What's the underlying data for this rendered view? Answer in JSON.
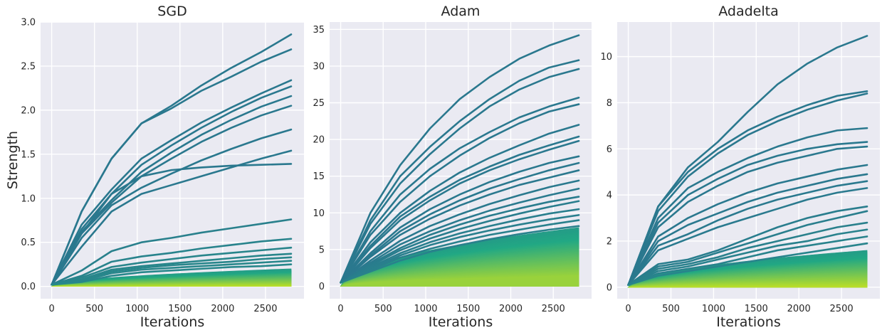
{
  "figure": {
    "ylabel": "Strength",
    "xlabel": "Iterations"
  },
  "style": {
    "background": "#eaeaf2",
    "grid": "#ffffff",
    "color_high": "#2a788e",
    "color_mid": "#22a884",
    "color_low": "#bddf26"
  },
  "chart_data": [
    {
      "type": "line",
      "title": "SGD",
      "xlabel": "Iterations",
      "ylabel": "Strength",
      "xlim": [
        -130,
        2950
      ],
      "ylim": [
        -0.14,
        3.0
      ],
      "xticks": [
        0,
        500,
        1000,
        1500,
        2000,
        2500
      ],
      "xtick_labels": [
        "0",
        "500",
        "1000",
        "1500",
        "2000",
        "2500"
      ],
      "yticks": [
        0.0,
        0.5,
        1.0,
        1.5,
        2.0,
        2.5,
        3.0
      ],
      "ytick_labels": [
        "0.0",
        "0.5",
        "1.0",
        "1.5",
        "2.0",
        "2.5",
        "3.0"
      ],
      "grid": true,
      "x_range": [
        0,
        2800
      ],
      "series": [
        {
          "values": [
            0.02,
            0.85,
            1.45,
            1.85,
            2.05,
            2.28,
            2.48,
            2.66,
            2.86
          ]
        },
        {
          "values": [
            0.02,
            0.85,
            1.45,
            1.85,
            2.02,
            2.22,
            2.38,
            2.55,
            2.69
          ]
        },
        {
          "values": [
            0.02,
            0.7,
            1.1,
            1.45,
            1.66,
            1.86,
            2.03,
            2.19,
            2.34
          ]
        },
        {
          "values": [
            0.02,
            0.65,
            1.05,
            1.38,
            1.6,
            1.8,
            1.98,
            2.14,
            2.27
          ]
        },
        {
          "values": [
            0.02,
            0.62,
            0.98,
            1.3,
            1.52,
            1.72,
            1.89,
            2.04,
            2.16
          ]
        },
        {
          "values": [
            0.02,
            0.6,
            0.95,
            1.25,
            1.45,
            1.64,
            1.8,
            1.94,
            2.05
          ]
        },
        {
          "values": [
            0.02,
            0.55,
            0.92,
            1.12,
            1.28,
            1.43,
            1.56,
            1.68,
            1.78
          ]
        },
        {
          "values": [
            0.02,
            0.6,
            1.05,
            1.25,
            1.32,
            1.35,
            1.37,
            1.38,
            1.39
          ]
        },
        {
          "values": [
            0.02,
            0.45,
            0.85,
            1.05,
            1.15,
            1.25,
            1.35,
            1.45,
            1.54
          ]
        },
        {
          "values": [
            0.02,
            0.18,
            0.4,
            0.5,
            0.55,
            0.61,
            0.66,
            0.71,
            0.76
          ]
        },
        {
          "values": [
            0.02,
            0.12,
            0.28,
            0.34,
            0.38,
            0.43,
            0.47,
            0.51,
            0.54
          ]
        },
        {
          "values": [
            0.02,
            0.1,
            0.22,
            0.27,
            0.31,
            0.35,
            0.38,
            0.41,
            0.44
          ]
        },
        {
          "values": [
            0.02,
            0.08,
            0.19,
            0.23,
            0.26,
            0.29,
            0.32,
            0.35,
            0.37
          ]
        },
        {
          "values": [
            0.02,
            0.07,
            0.17,
            0.21,
            0.24,
            0.26,
            0.28,
            0.31,
            0.33
          ]
        },
        {
          "values": [
            0.02,
            0.06,
            0.15,
            0.19,
            0.21,
            0.23,
            0.25,
            0.27,
            0.29
          ]
        },
        {
          "values": [
            0.02,
            0.05,
            0.12,
            0.16,
            0.18,
            0.2,
            0.22,
            0.23,
            0.25
          ]
        }
      ],
      "band": {
        "min_value": 0.0,
        "max_value": 0.2,
        "bottom": 0.0
      }
    },
    {
      "type": "line",
      "title": "Adam",
      "xlabel": "Iterations",
      "ylim": [
        -1.7,
        36
      ],
      "xlim": [
        -130,
        2950
      ],
      "xticks": [
        0,
        500,
        1000,
        1500,
        2000,
        2500
      ],
      "xtick_labels": [
        "0",
        "500",
        "1000",
        "1500",
        "2000",
        "2500"
      ],
      "yticks": [
        0,
        5,
        10,
        15,
        20,
        25,
        30,
        35
      ],
      "ytick_labels": [
        "0",
        "5",
        "10",
        "15",
        "20",
        "25",
        "30",
        "35"
      ],
      "grid": true,
      "x_range": [
        0,
        2800
      ],
      "series": [
        {
          "values": [
            0.5,
            10.0,
            16.5,
            21.5,
            25.5,
            28.5,
            31.0,
            32.8,
            34.2
          ]
        },
        {
          "values": [
            0.5,
            9.0,
            15.0,
            19.0,
            22.5,
            25.5,
            28.0,
            29.8,
            30.8
          ]
        },
        {
          "values": [
            0.5,
            8.5,
            14.0,
            18.0,
            21.5,
            24.5,
            26.8,
            28.5,
            29.6
          ]
        },
        {
          "values": [
            0.5,
            7.5,
            12.5,
            16.0,
            18.8,
            21.0,
            23.0,
            24.5,
            25.7
          ]
        },
        {
          "values": [
            0.5,
            7.0,
            11.5,
            15.0,
            17.8,
            20.2,
            22.2,
            23.8,
            24.8
          ]
        },
        {
          "values": [
            0.5,
            6.0,
            10.0,
            13.0,
            15.5,
            17.5,
            19.2,
            20.8,
            22.0
          ]
        },
        {
          "values": [
            0.5,
            5.5,
            9.5,
            12.2,
            14.5,
            16.3,
            17.9,
            19.2,
            20.4
          ]
        },
        {
          "values": [
            0.5,
            5.2,
            9.0,
            11.7,
            14.0,
            15.8,
            17.3,
            18.6,
            19.8
          ]
        },
        {
          "values": [
            0.5,
            4.5,
            8.0,
            10.5,
            12.5,
            14.2,
            15.6,
            16.8,
            17.7
          ]
        },
        {
          "values": [
            0.5,
            4.2,
            7.5,
            9.8,
            11.7,
            13.3,
            14.6,
            15.8,
            16.8
          ]
        },
        {
          "values": [
            0.5,
            4.0,
            7.0,
            9.2,
            11.0,
            12.5,
            13.8,
            14.8,
            15.8
          ]
        },
        {
          "values": [
            0.5,
            3.5,
            6.2,
            8.2,
            9.8,
            11.2,
            12.4,
            13.5,
            14.4
          ]
        },
        {
          "values": [
            0.5,
            3.2,
            5.7,
            7.5,
            9.0,
            10.3,
            11.4,
            12.4,
            13.3
          ]
        },
        {
          "values": [
            0.5,
            3.0,
            5.2,
            7.0,
            8.4,
            9.6,
            10.6,
            11.5,
            12.2
          ]
        },
        {
          "values": [
            0.5,
            2.8,
            4.9,
            6.5,
            7.8,
            8.9,
            9.9,
            10.8,
            11.6
          ]
        },
        {
          "values": [
            0.5,
            2.6,
            4.5,
            6.0,
            7.2,
            8.2,
            9.1,
            9.9,
            10.5
          ]
        },
        {
          "values": [
            0.5,
            2.4,
            4.2,
            5.6,
            6.7,
            7.6,
            8.4,
            9.1,
            9.7
          ]
        },
        {
          "values": [
            0.5,
            2.2,
            3.9,
            5.1,
            6.1,
            7.0,
            7.7,
            8.4,
            9.0
          ]
        },
        {
          "values": [
            0.5,
            2.0,
            3.5,
            4.7,
            5.6,
            6.4,
            7.1,
            7.7,
            8.2
          ]
        }
      ],
      "band": {
        "min_value": 1.5,
        "max_value": 8.0,
        "bottom": 0.0
      }
    },
    {
      "type": "line",
      "title": "Adadelta",
      "xlabel": "Iterations",
      "ylim": [
        -0.5,
        11.5
      ],
      "xlim": [
        -130,
        2950
      ],
      "xticks": [
        0,
        500,
        1000,
        1500,
        2000,
        2500
      ],
      "xtick_labels": [
        "0",
        "500",
        "1000",
        "1500",
        "2000",
        "2500"
      ],
      "yticks": [
        0,
        2,
        4,
        6,
        8,
        10
      ],
      "ytick_labels": [
        "0",
        "2",
        "4",
        "6",
        "8",
        "10"
      ],
      "grid": true,
      "x_range": [
        0,
        2800
      ],
      "series": [
        {
          "values": [
            0.1,
            3.5,
            5.2,
            6.3,
            7.6,
            8.8,
            9.7,
            10.4,
            10.9
          ]
        },
        {
          "values": [
            0.1,
            3.5,
            5.0,
            6.0,
            6.8,
            7.4,
            7.9,
            8.3,
            8.5
          ]
        },
        {
          "values": [
            0.1,
            3.3,
            4.8,
            5.8,
            6.6,
            7.2,
            7.7,
            8.1,
            8.4
          ]
        },
        {
          "values": [
            0.1,
            3.0,
            4.3,
            5.0,
            5.6,
            6.1,
            6.5,
            6.8,
            6.9
          ]
        },
        {
          "values": [
            0.1,
            2.8,
            4.0,
            4.7,
            5.3,
            5.7,
            6.0,
            6.2,
            6.3
          ]
        },
        {
          "values": [
            0.1,
            2.6,
            3.7,
            4.4,
            5.0,
            5.4,
            5.7,
            6.0,
            6.1
          ]
        },
        {
          "values": [
            0.1,
            2.2,
            3.0,
            3.6,
            4.1,
            4.5,
            4.8,
            5.1,
            5.3
          ]
        },
        {
          "values": [
            0.1,
            2.0,
            2.7,
            3.2,
            3.7,
            4.1,
            4.4,
            4.7,
            4.9
          ]
        },
        {
          "values": [
            0.1,
            1.8,
            2.3,
            2.9,
            3.4,
            3.8,
            4.1,
            4.4,
            4.6
          ]
        },
        {
          "values": [
            0.1,
            1.6,
            2.1,
            2.6,
            3.0,
            3.4,
            3.8,
            4.1,
            4.3
          ]
        },
        {
          "values": [
            0.1,
            1.0,
            1.2,
            1.6,
            2.1,
            2.6,
            3.0,
            3.3,
            3.5
          ]
        },
        {
          "values": [
            0.1,
            0.9,
            1.1,
            1.5,
            1.9,
            2.3,
            2.7,
            3.0,
            3.3
          ]
        },
        {
          "values": [
            0.1,
            0.8,
            1.0,
            1.3,
            1.7,
            2.0,
            2.3,
            2.6,
            2.8
          ]
        },
        {
          "values": [
            0.1,
            0.7,
            0.9,
            1.2,
            1.5,
            1.8,
            2.0,
            2.3,
            2.5
          ]
        },
        {
          "values": [
            0.1,
            0.6,
            0.8,
            1.0,
            1.3,
            1.6,
            1.8,
            2.0,
            2.2
          ]
        },
        {
          "values": [
            0.1,
            0.5,
            0.7,
            0.9,
            1.1,
            1.3,
            1.5,
            1.7,
            1.9
          ]
        }
      ],
      "band": {
        "min_value": 0.0,
        "max_value": 1.6,
        "bottom": 0.0
      }
    }
  ]
}
